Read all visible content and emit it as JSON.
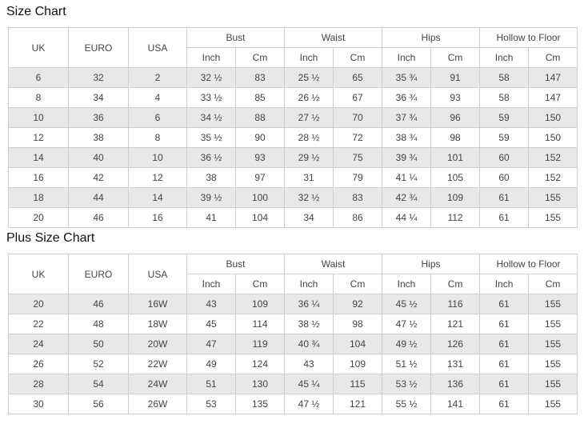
{
  "sections": [
    {
      "title": "Size Chart",
      "groups": [
        "UK",
        "EURO",
        "USA",
        "Bust",
        "Waist",
        "Hips",
        "Hollow to Floor"
      ],
      "sub": [
        "Inch",
        "Cm",
        "Inch",
        "Cm",
        "Inch",
        "Cm",
        "Inch",
        "Cm"
      ],
      "rows": [
        [
          "6",
          "32",
          "2",
          "32 ½",
          "83",
          "25 ½",
          "65",
          "35 ¾",
          "91",
          "58",
          "147"
        ],
        [
          "8",
          "34",
          "4",
          "33 ½",
          "85",
          "26 ½",
          "67",
          "36 ¾",
          "93",
          "58",
          "147"
        ],
        [
          "10",
          "36",
          "6",
          "34 ½",
          "88",
          "27 ½",
          "70",
          "37 ¾",
          "96",
          "59",
          "150"
        ],
        [
          "12",
          "38",
          "8",
          "35 ½",
          "90",
          "28 ½",
          "72",
          "38 ¾",
          "98",
          "59",
          "150"
        ],
        [
          "14",
          "40",
          "10",
          "36 ½",
          "93",
          "29 ½",
          "75",
          "39 ¾",
          "101",
          "60",
          "152"
        ],
        [
          "16",
          "42",
          "12",
          "38",
          "97",
          "31",
          "79",
          "41 ¼",
          "105",
          "60",
          "152"
        ],
        [
          "18",
          "44",
          "14",
          "39 ½",
          "100",
          "32 ½",
          "83",
          "42 ¾",
          "109",
          "61",
          "155"
        ],
        [
          "20",
          "46",
          "16",
          "41",
          "104",
          "34",
          "86",
          "44 ¼",
          "112",
          "61",
          "155"
        ]
      ]
    },
    {
      "title": "Plus Size Chart",
      "groups": [
        "UK",
        "EURO",
        "USA",
        "Bust",
        "Waist",
        "Hips",
        "Hollow to Floor"
      ],
      "sub": [
        "Inch",
        "Cm",
        "Inch",
        "Cm",
        "Inch",
        "Cm",
        "Inch",
        "Cm"
      ],
      "rows": [
        [
          "20",
          "46",
          "16W",
          "43",
          "109",
          "36 ¼",
          "92",
          "45 ½",
          "116",
          "61",
          "155"
        ],
        [
          "22",
          "48",
          "18W",
          "45",
          "114",
          "38 ½",
          "98",
          "47 ½",
          "121",
          "61",
          "155"
        ],
        [
          "24",
          "50",
          "20W",
          "47",
          "119",
          "40 ¾",
          "104",
          "49 ½",
          "126",
          "61",
          "155"
        ],
        [
          "26",
          "52",
          "22W",
          "49",
          "124",
          "43",
          "109",
          "51 ½",
          "131",
          "61",
          "155"
        ],
        [
          "28",
          "54",
          "24W",
          "51",
          "130",
          "45 ¼",
          "115",
          "53 ½",
          "136",
          "61",
          "155"
        ],
        [
          "30",
          "56",
          "26W",
          "53",
          "135",
          "47 ½",
          "121",
          "55 ½",
          "141",
          "61",
          "155"
        ]
      ]
    }
  ]
}
